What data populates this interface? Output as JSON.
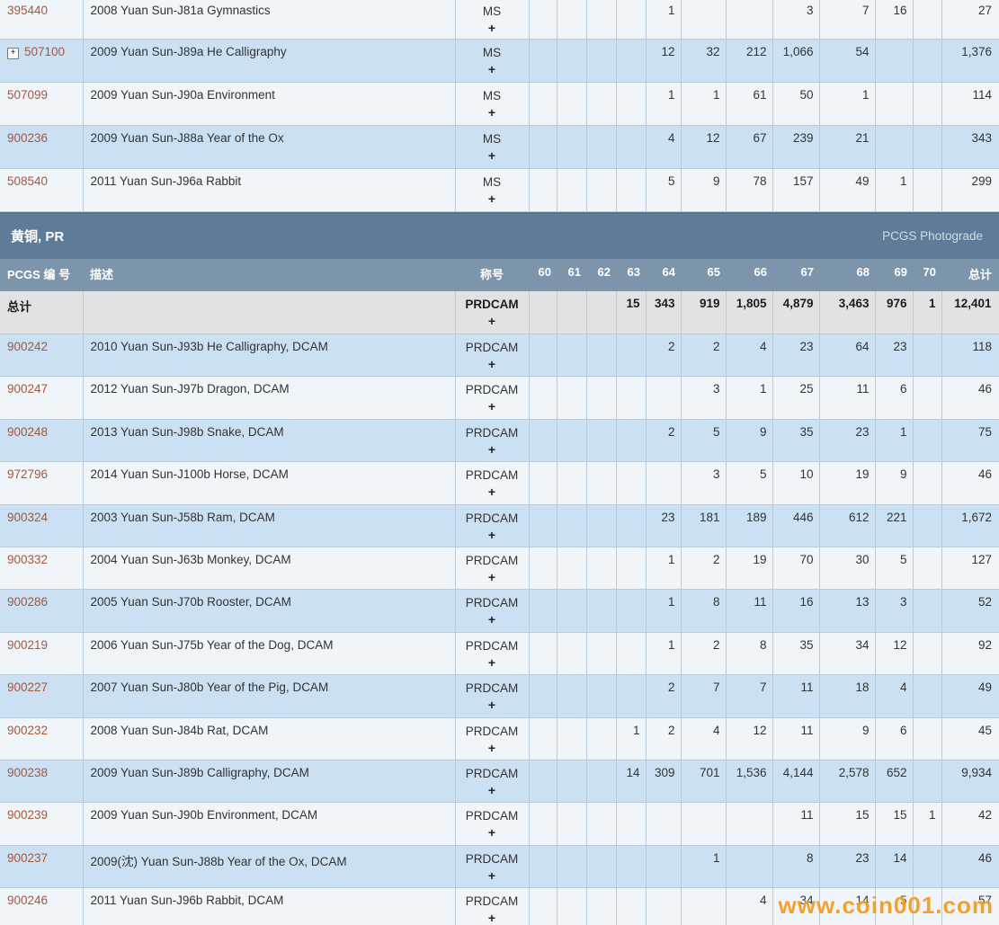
{
  "theme": {
    "band_bg": "#5e7c98",
    "column_header_bg": "#7d95ab",
    "row_light": "#f0f5fa",
    "row_dark": "#cbe0f2",
    "totals_bg": "#e2e2e2",
    "border": "#b7cbdc",
    "pcgs_number_color": "#a4583a",
    "watermark_color": "#f39818"
  },
  "columns": {
    "id_label": "PCGS 编 号",
    "desc_label": "描述",
    "designation_label": "称号",
    "grade_labels": [
      "60",
      "61",
      "62",
      "63",
      "64",
      "65",
      "66",
      "67",
      "68",
      "69",
      "70"
    ],
    "total_label": "总计"
  },
  "top_section": {
    "rows": [
      {
        "id": "395440",
        "expand": false,
        "desc": "2008 Yuan Sun-J81a Gymnastics",
        "designation": "MS",
        "plus": "+",
        "grades": {
          "64": "1",
          "67": "3",
          "68": "7",
          "69": "16"
        },
        "total": "27",
        "shade": "light"
      },
      {
        "id": "507100",
        "expand": true,
        "desc": "2009 Yuan Sun-J89a He Calligraphy",
        "designation": "MS",
        "plus": "+",
        "grades": {
          "64": "12",
          "65": "32",
          "66": "212",
          "67": "1,066",
          "68": "54"
        },
        "total": "1,376",
        "shade": "dark"
      },
      {
        "id": "507099",
        "expand": false,
        "desc": "2009 Yuan Sun-J90a Environment",
        "designation": "MS",
        "plus": "+",
        "grades": {
          "64": "1",
          "65": "1",
          "66": "61",
          "67": "50",
          "68": "1"
        },
        "total": "114",
        "shade": "light"
      },
      {
        "id": "900236",
        "expand": false,
        "desc": "2009 Yuan Sun-J88a Year of the Ox",
        "designation": "MS",
        "plus": "+",
        "grades": {
          "64": "4",
          "65": "12",
          "66": "67",
          "67": "239",
          "68": "21"
        },
        "total": "343",
        "shade": "dark"
      },
      {
        "id": "508540",
        "expand": false,
        "desc": "2011 Yuan Sun-J96a Rabbit",
        "designation": "MS",
        "plus": "+",
        "grades": {
          "64": "5",
          "65": "9",
          "66": "78",
          "67": "157",
          "68": "49",
          "69": "1"
        },
        "total": "299",
        "shade": "light"
      }
    ]
  },
  "pr_section": {
    "title": "黄铜, PR",
    "photograde_link": "PCGS Photograde",
    "totals": {
      "label": "总计",
      "designation": "PRDCAM",
      "plus": "+",
      "grades": {
        "63": "15",
        "64": "343",
        "65": "919",
        "66": "1,805",
        "67": "4,879",
        "68": "3,463",
        "69": "976",
        "70": "1"
      },
      "total": "12,401"
    },
    "rows": [
      {
        "id": "900242",
        "expand": false,
        "desc": "2010 Yuan Sun-J93b He Calligraphy, DCAM",
        "designation": "PRDCAM",
        "plus": "+",
        "grades": {
          "64": "2",
          "65": "2",
          "66": "4",
          "67": "23",
          "68": "64",
          "69": "23"
        },
        "total": "118",
        "shade": "dark"
      },
      {
        "id": "900247",
        "expand": false,
        "desc": "2012 Yuan Sun-J97b Dragon, DCAM",
        "designation": "PRDCAM",
        "plus": "+",
        "grades": {
          "65": "3",
          "66": "1",
          "67": "25",
          "68": "11",
          "69": "6"
        },
        "total": "46",
        "shade": "light"
      },
      {
        "id": "900248",
        "expand": false,
        "desc": "2013 Yuan Sun-J98b Snake, DCAM",
        "designation": "PRDCAM",
        "plus": "+",
        "grades": {
          "64": "2",
          "65": "5",
          "66": "9",
          "67": "35",
          "68": "23",
          "69": "1"
        },
        "total": "75",
        "shade": "dark"
      },
      {
        "id": "972796",
        "expand": false,
        "desc": "2014 Yuan Sun-J100b Horse, DCAM",
        "designation": "PRDCAM",
        "plus": "+",
        "grades": {
          "65": "3",
          "66": "5",
          "67": "10",
          "68": "19",
          "69": "9"
        },
        "total": "46",
        "shade": "light"
      },
      {
        "id": "900324",
        "expand": false,
        "desc": "2003 Yuan Sun-J58b Ram, DCAM",
        "designation": "PRDCAM",
        "plus": "+",
        "grades": {
          "64": "23",
          "65": "181",
          "66": "189",
          "67": "446",
          "68": "612",
          "69": "221"
        },
        "total": "1,672",
        "shade": "dark"
      },
      {
        "id": "900332",
        "expand": false,
        "desc": "2004 Yuan Sun-J63b Monkey, DCAM",
        "designation": "PRDCAM",
        "plus": "+",
        "grades": {
          "64": "1",
          "65": "2",
          "66": "19",
          "67": "70",
          "68": "30",
          "69": "5"
        },
        "total": "127",
        "shade": "light"
      },
      {
        "id": "900286",
        "expand": false,
        "desc": "2005 Yuan Sun-J70b Rooster, DCAM",
        "designation": "PRDCAM",
        "plus": "+",
        "grades": {
          "64": "1",
          "65": "8",
          "66": "11",
          "67": "16",
          "68": "13",
          "69": "3"
        },
        "total": "52",
        "shade": "dark"
      },
      {
        "id": "900219",
        "expand": false,
        "desc": "2006 Yuan Sun-J75b Year of the Dog, DCAM",
        "designation": "PRDCAM",
        "plus": "+",
        "grades": {
          "64": "1",
          "65": "2",
          "66": "8",
          "67": "35",
          "68": "34",
          "69": "12"
        },
        "total": "92",
        "shade": "light"
      },
      {
        "id": "900227",
        "expand": false,
        "desc": "2007 Yuan Sun-J80b Year of the Pig, DCAM",
        "designation": "PRDCAM",
        "plus": "+",
        "grades": {
          "64": "2",
          "65": "7",
          "66": "7",
          "67": "11",
          "68": "18",
          "69": "4"
        },
        "total": "49",
        "shade": "dark"
      },
      {
        "id": "900232",
        "expand": false,
        "desc": "2008 Yuan Sun-J84b Rat, DCAM",
        "designation": "PRDCAM",
        "plus": "+",
        "grades": {
          "63": "1",
          "64": "2",
          "65": "4",
          "66": "12",
          "67": "11",
          "68": "9",
          "69": "6"
        },
        "total": "45",
        "shade": "light"
      },
      {
        "id": "900238",
        "expand": false,
        "desc": "2009 Yuan Sun-J89b Calligraphy, DCAM",
        "designation": "PRDCAM",
        "plus": "+",
        "grades": {
          "63": "14",
          "64": "309",
          "65": "701",
          "66": "1,536",
          "67": "4,144",
          "68": "2,578",
          "69": "652"
        },
        "total": "9,934",
        "shade": "dark"
      },
      {
        "id": "900239",
        "expand": false,
        "desc": "2009 Yuan Sun-J90b Environment, DCAM",
        "designation": "PRDCAM",
        "plus": "+",
        "grades": {
          "67": "11",
          "68": "15",
          "69": "15",
          "70": "1"
        },
        "total": "42",
        "shade": "light"
      },
      {
        "id": "900237",
        "expand": false,
        "desc": "2009(沈) Yuan Sun-J88b Year of the Ox, DCAM",
        "designation": "PRDCAM",
        "plus": "+",
        "grades": {
          "65": "1",
          "67": "8",
          "68": "23",
          "69": "14"
        },
        "total": "46",
        "shade": "dark"
      },
      {
        "id": "900246",
        "expand": false,
        "desc": "2011 Yuan Sun-J96b Rabbit, DCAM",
        "designation": "PRDCAM",
        "plus": "+",
        "grades": {
          "66": "4",
          "67": "34",
          "68": "14",
          "69": "5"
        },
        "total": "57",
        "shade": "light"
      }
    ]
  },
  "watermark": "www.coin001.com"
}
